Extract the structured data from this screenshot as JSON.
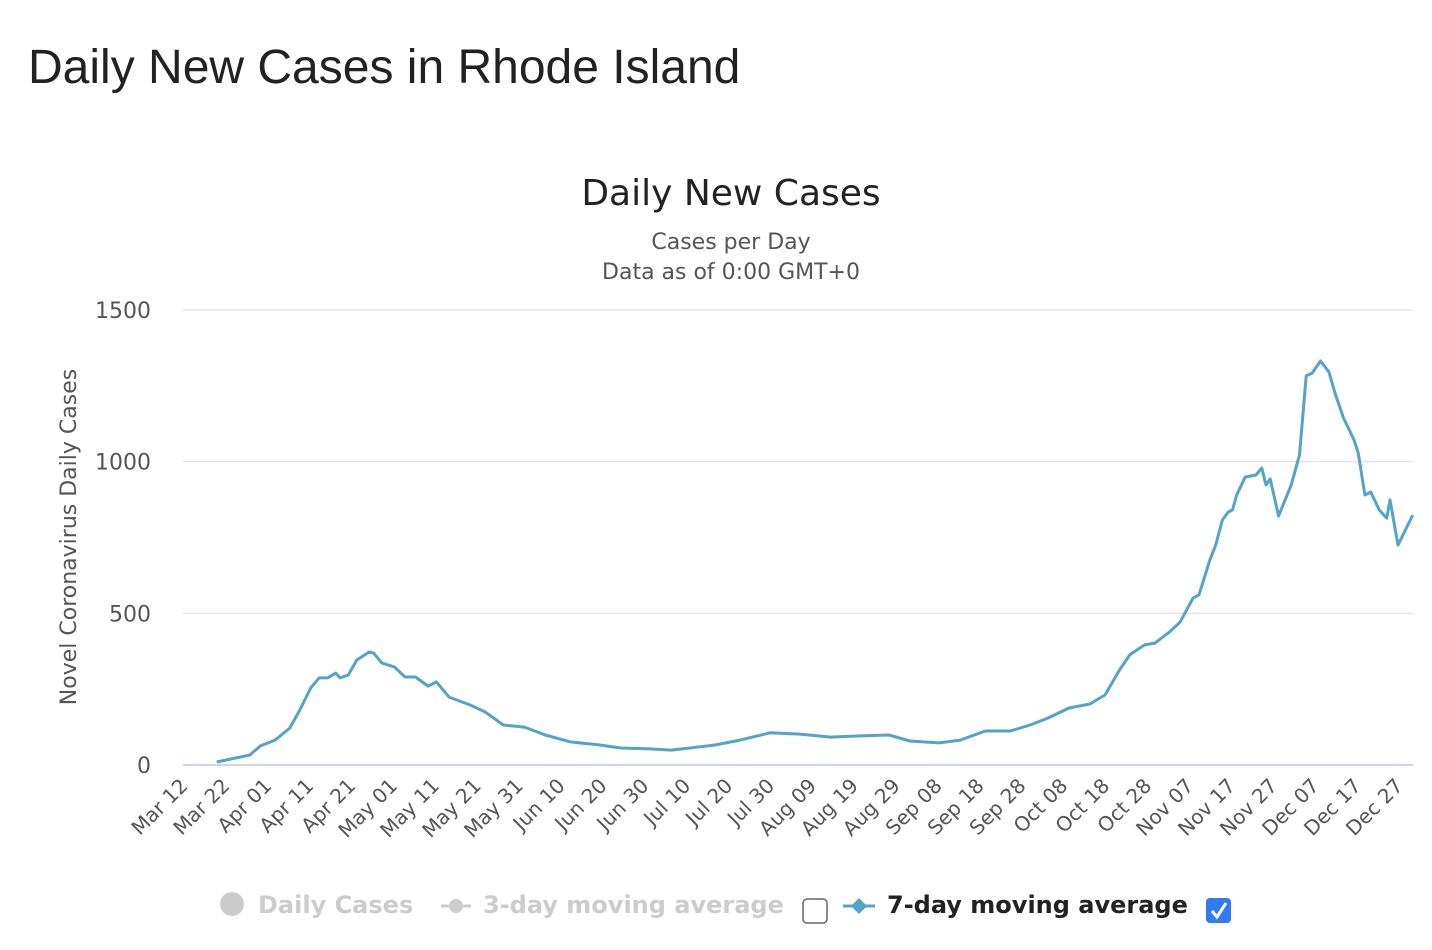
{
  "page_title": "Daily New Cases in Rhode Island",
  "chart_data": {
    "type": "line",
    "title": "Daily New Cases",
    "subtitle_lines": [
      "Cases per Day",
      "Data as of 0:00 GMT+0"
    ],
    "xlabel": "",
    "ylabel": "Novel Coronavirus Daily Cases",
    "ylim": [
      0,
      1500
    ],
    "yticks": [
      0,
      500,
      1000,
      1500
    ],
    "grid": true,
    "x_unit": "days since Mar 12",
    "xticks": [
      "Mar 12",
      "Mar 22",
      "Apr 01",
      "Apr 11",
      "Apr 21",
      "May 01",
      "May 11",
      "May 21",
      "May 31",
      "Jun 10",
      "Jun 20",
      "Jun 30",
      "Jul 10",
      "Jul 20",
      "Jul 30",
      "Aug 09",
      "Aug 19",
      "Aug 29",
      "Sep 08",
      "Sep 18",
      "Sep 28",
      "Oct 08",
      "Oct 18",
      "Oct 28",
      "Nov 07",
      "Nov 17",
      "Nov 27",
      "Dec 07",
      "Dec 17",
      "Dec 27"
    ],
    "xtick_step_days": 10,
    "legend_position": "bottom",
    "series": [
      {
        "name": "Daily Cases",
        "visible": false,
        "color": "#cccccc"
      },
      {
        "name": "3-day moving average",
        "visible": false,
        "color": "#cccccc",
        "checked": false
      },
      {
        "name": "7-day moving average",
        "visible": true,
        "color": "#55a3c6",
        "checked": true,
        "points": [
          [
            7.6,
            10
          ],
          [
            15.5,
            33
          ],
          [
            18,
            63
          ],
          [
            21.5,
            82
          ],
          [
            25,
            122
          ],
          [
            27.4,
            181
          ],
          [
            30,
            254
          ],
          [
            32,
            287
          ],
          [
            34,
            287
          ],
          [
            36,
            303
          ],
          [
            37,
            287
          ],
          [
            39,
            297
          ],
          [
            41,
            346
          ],
          [
            44,
            373
          ],
          [
            45,
            369
          ],
          [
            47,
            336
          ],
          [
            50,
            323
          ],
          [
            52.5,
            290
          ],
          [
            55,
            290
          ],
          [
            58,
            260
          ],
          [
            60,
            274
          ],
          [
            63,
            224
          ],
          [
            68,
            198
          ],
          [
            71.6,
            175
          ],
          [
            76,
            132
          ],
          [
            81,
            125
          ],
          [
            86,
            99
          ],
          [
            92,
            76
          ],
          [
            99,
            66
          ],
          [
            104,
            56
          ],
          [
            111,
            53
          ],
          [
            116,
            49
          ],
          [
            120.5,
            56
          ],
          [
            126.5,
            66
          ],
          [
            132.5,
            82
          ],
          [
            139.6,
            106
          ],
          [
            146.8,
            102
          ],
          [
            154,
            92
          ],
          [
            161,
            96
          ],
          [
            168,
            99
          ],
          [
            173,
            79
          ],
          [
            180,
            73
          ],
          [
            185,
            82
          ],
          [
            191,
            112
          ],
          [
            197,
            112
          ],
          [
            201.7,
            132
          ],
          [
            206,
            155
          ],
          [
            211,
            188
          ],
          [
            216,
            201
          ],
          [
            219.6,
            231
          ],
          [
            223,
            313
          ],
          [
            225.5,
            363
          ],
          [
            229,
            396
          ],
          [
            231.5,
            402
          ],
          [
            235,
            439
          ],
          [
            237.5,
            471
          ],
          [
            240.6,
            551
          ],
          [
            242,
            561
          ],
          [
            244.6,
            676
          ],
          [
            246,
            725
          ],
          [
            247.6,
            808
          ],
          [
            249,
            834
          ],
          [
            250,
            841
          ],
          [
            251,
            890
          ],
          [
            253,
            949
          ],
          [
            255.6,
            956
          ],
          [
            257,
            979
          ],
          [
            258,
            923
          ],
          [
            259,
            943
          ],
          [
            261,
            821
          ],
          [
            264,
            923
          ],
          [
            266,
            1022
          ],
          [
            267.6,
            1283
          ],
          [
            269,
            1292
          ],
          [
            271,
            1332
          ],
          [
            273,
            1296
          ],
          [
            274.6,
            1220
          ],
          [
            276.5,
            1144
          ],
          [
            279,
            1072
          ],
          [
            280,
            1029
          ],
          [
            281.6,
            890
          ],
          [
            283,
            900
          ],
          [
            285,
            841
          ],
          [
            286.8,
            814
          ],
          [
            287.6,
            874
          ],
          [
            289.5,
            725
          ],
          [
            293,
            824
          ]
        ]
      }
    ]
  }
}
